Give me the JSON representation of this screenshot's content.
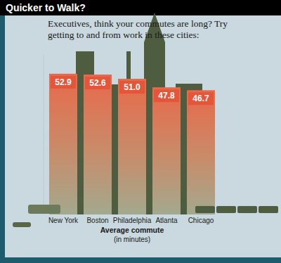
{
  "chart_data": {
    "type": "bar",
    "title": "Quicker to Walk?",
    "subtitle": "Executives, think your commutes are long? Try getting to and from work in these cities:",
    "categories": [
      "New York",
      "Boston",
      "Philadelphia",
      "Atlanta",
      "Chicago"
    ],
    "values": [
      52.9,
      52.6,
      51.0,
      47.8,
      46.7
    ],
    "value_labels": [
      "52.9",
      "52.6",
      "51.0",
      "47.8",
      "46.7"
    ],
    "color": "#e8694a",
    "xlabel": "Average commute",
    "annotations": [
      "(in minutes)"
    ],
    "ylim": [
      0,
      60
    ],
    "data_labels": true,
    "tick_labels": "x",
    "grid": false
  }
}
